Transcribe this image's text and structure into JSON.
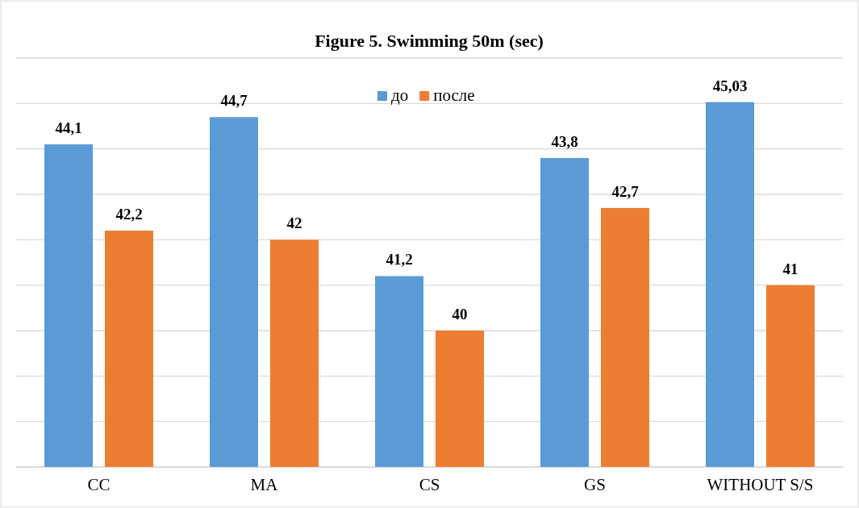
{
  "chart_data": {
    "type": "bar",
    "title": "Figure 5. Swimming 50m (sec)",
    "categories": [
      "CC",
      "MA",
      "CS",
      "GS",
      "WITHOUT S/S"
    ],
    "series": [
      {
        "name": "до",
        "color": "#5b9bd5",
        "values": [
          44.1,
          44.7,
          41.2,
          43.8,
          45.03
        ],
        "value_labels": [
          "44,1",
          "44,7",
          "41,2",
          "43,8",
          "45,03"
        ]
      },
      {
        "name": "после",
        "color": "#ed7d31",
        "values": [
          42.2,
          42,
          40,
          42.7,
          41
        ],
        "value_labels": [
          "42,2",
          "42",
          "40",
          "42,7",
          "41"
        ]
      }
    ],
    "ylim": [
      37,
      46
    ],
    "yticks": [
      {
        "value": 37,
        "label": null
      },
      {
        "value": 38,
        "label": null
      },
      {
        "value": 39,
        "label": null
      },
      {
        "value": 40,
        "label": null
      },
      {
        "value": 41,
        "label": null
      },
      {
        "value": 42,
        "label": null
      },
      {
        "value": 43,
        "label": null
      },
      {
        "value": 44,
        "label": null
      },
      {
        "value": 45,
        "label": null
      },
      {
        "value": 46,
        "label": null
      }
    ],
    "tick_labels": "x",
    "grid": "y",
    "legend": "top"
  }
}
